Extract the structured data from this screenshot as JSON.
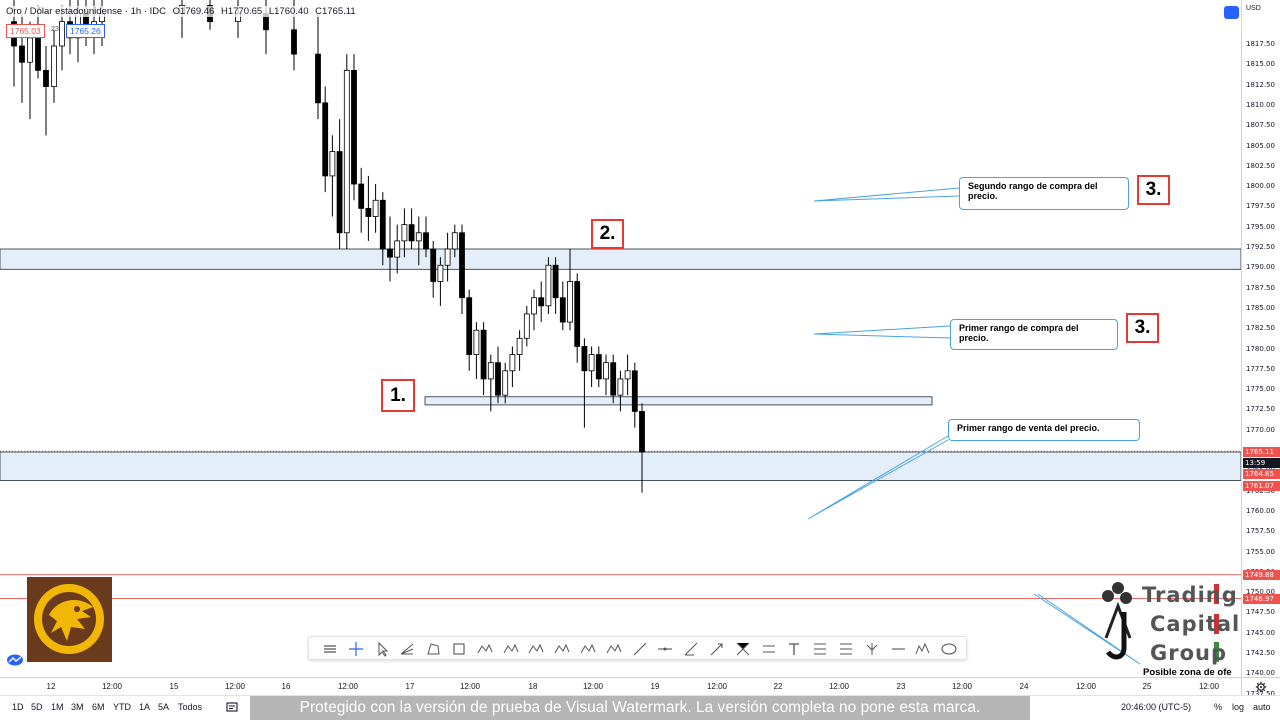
{
  "legend": {
    "symbol": "Oro / Dólar estadounidense · 1h · IDC",
    "open": "O1769.46",
    "high": "H1770.65",
    "low": "L1760.40",
    "close": "C1765.11"
  },
  "quote": {
    "bid": "1765.03",
    "spread": "23",
    "ask": "1765.26"
  },
  "price_axis": {
    "currency": "USD",
    "ticks": [
      "1817.50",
      "1815.00",
      "1812.50",
      "1810.00",
      "1807.50",
      "1805.00",
      "1802.50",
      "1800.00",
      "1797.50",
      "1795.00",
      "1792.50",
      "1790.00",
      "1787.50",
      "1785.00",
      "1782.50",
      "1780.00",
      "1777.50",
      "1775.00",
      "1772.50",
      "1770.00",
      "1767.50",
      "1765.00",
      "1762.50",
      "1760.00",
      "1757.50",
      "1755.00",
      "1752.50",
      "1750.00",
      "1747.50",
      "1745.00",
      "1742.50",
      "1740.00",
      "1737.50"
    ],
    "tags": {
      "last": {
        "text": "1765.11",
        "color": "#ef5350"
      },
      "countdown": {
        "text": "13:59",
        "color": "#131722"
      },
      "level_a": {
        "text": "1764.65",
        "color": "#ef5350"
      },
      "level_b": {
        "text": "1761.07",
        "color": "#ef5350"
      },
      "level_c": {
        "text": "1749.88",
        "color": "#ef5350"
      },
      "level_d": {
        "text": "1746.97",
        "color": "#ef5350"
      }
    }
  },
  "time_axis": {
    "ticks": [
      "12",
      "12:00",
      "15",
      "12:00",
      "16",
      "12:00",
      "17",
      "12:00",
      "18",
      "12:00",
      "19",
      "12:00",
      "22",
      "12:00",
      "23",
      "12:00",
      "24",
      "12:00",
      "25",
      "12:00"
    ]
  },
  "bottom_bar": {
    "ranges": [
      "1D",
      "5D",
      "1M",
      "3M",
      "6M",
      "YTD",
      "1A",
      "5A",
      "Todos"
    ],
    "watermark": "Protegido con la versión de prueba de Visual Watermark. La versión completa no pone esta marca.",
    "clock": "20:46:00 (UTC-5)",
    "pct": "%",
    "log": "log",
    "auto": "auto"
  },
  "annotations": {
    "callout_segundo": "Segundo rango de compra del precio.",
    "callout_primer_compra": "Primer rango de compra del precio.",
    "callout_primer_venta": "Primer rango de venta del precio.",
    "num_1": "1.",
    "num_2": "2.",
    "num_3a": "3.",
    "num_3b": "3.",
    "zone_label": "Posible zona de ofe"
  },
  "logo": {
    "line1": "Trading",
    "line2": "Capital",
    "line3": "Group"
  },
  "colors": {
    "bull": "#ffffff",
    "bear": "#000000",
    "zone_fill": "#e3eef9",
    "zone_border": "#1e2a3a",
    "callout_line": "#4aa3df",
    "red_level": "#e53935"
  },
  "chart_data": {
    "type": "candlestick",
    "symbol": "Oro / Dólar estadounidense",
    "timeframe": "1h",
    "ylim": [
      1737.5,
      1821
    ],
    "candles": [
      [
        1818,
        1821,
        1810,
        1815
      ],
      [
        1815,
        1819,
        1808,
        1813
      ],
      [
        1813,
        1818,
        1806,
        1816
      ],
      [
        1816,
        1820,
        1811,
        1812
      ],
      [
        1812,
        1815,
        1804,
        1810
      ],
      [
        1810,
        1817,
        1808,
        1815
      ],
      [
        1815,
        1820,
        1812,
        1818
      ],
      [
        1818,
        1821,
        1814,
        1816
      ],
      [
        1816,
        1821,
        1813,
        1819
      ],
      [
        1819,
        1821,
        1815,
        1817
      ],
      [
        1817,
        1821,
        1814,
        1818
      ],
      [
        1818,
        1821,
        1815,
        1819
      ],
      [
        1819,
        1821,
        1816,
        1820
      ],
      [
        1820,
        1821,
        1817,
        1818
      ],
      [
        1818,
        1821,
        1816,
        1819
      ],
      [
        1819,
        1821,
        1814,
        1817
      ],
      [
        1817,
        1821,
        1812,
        1814
      ],
      [
        1814,
        1819,
        1806,
        1808
      ],
      [
        1808,
        1810,
        1797,
        1799
      ],
      [
        1799,
        1804,
        1794,
        1802
      ],
      [
        1802,
        1806,
        1790,
        1792
      ],
      [
        1792,
        1814,
        1790,
        1812
      ],
      [
        1812,
        1814,
        1796,
        1798
      ],
      [
        1798,
        1800,
        1792,
        1795
      ],
      [
        1795,
        1799,
        1791,
        1794
      ],
      [
        1794,
        1798,
        1792,
        1796
      ],
      [
        1796,
        1797,
        1788,
        1790
      ],
      [
        1790,
        1794,
        1786,
        1789
      ],
      [
        1789,
        1793,
        1787,
        1791
      ],
      [
        1791,
        1795,
        1789,
        1793
      ],
      [
        1793,
        1795,
        1790,
        1791
      ],
      [
        1791,
        1794,
        1788,
        1792
      ],
      [
        1792,
        1794,
        1789,
        1790
      ],
      [
        1790,
        1791,
        1784,
        1786
      ],
      [
        1786,
        1789,
        1783,
        1788
      ],
      [
        1788,
        1792,
        1786,
        1790
      ],
      [
        1790,
        1793,
        1789,
        1792
      ],
      [
        1792,
        1793,
        1782,
        1784
      ],
      [
        1784,
        1785,
        1775,
        1777
      ],
      [
        1777,
        1781,
        1774,
        1780
      ],
      [
        1780,
        1781,
        1772,
        1774
      ],
      [
        1774,
        1777,
        1770,
        1776
      ],
      [
        1776,
        1778,
        1771,
        1772
      ],
      [
        1772,
        1776,
        1771,
        1775
      ],
      [
        1775,
        1778,
        1773,
        1777
      ],
      [
        1777,
        1780,
        1775,
        1779
      ],
      [
        1779,
        1783,
        1778,
        1782
      ],
      [
        1782,
        1785,
        1780,
        1784
      ],
      [
        1784,
        1786,
        1781,
        1783
      ],
      [
        1783,
        1789,
        1782,
        1788
      ],
      [
        1788,
        1789,
        1782,
        1784
      ],
      [
        1784,
        1786,
        1780,
        1781
      ],
      [
        1781,
        1790,
        1780,
        1786
      ],
      [
        1786,
        1787,
        1776,
        1778
      ],
      [
        1778,
        1779,
        1768,
        1775
      ],
      [
        1775,
        1778,
        1773,
        1777
      ],
      [
        1777,
        1778,
        1773,
        1774
      ],
      [
        1774,
        1777,
        1772,
        1776
      ],
      [
        1776,
        1777,
        1771,
        1772
      ],
      [
        1772,
        1775,
        1770,
        1774
      ],
      [
        1774,
        1777,
        1772,
        1775
      ],
      [
        1775,
        1776,
        1768,
        1770
      ],
      [
        1770,
        1771,
        1760,
        1765
      ]
    ],
    "zones": [
      {
        "label": "2.",
        "top": 1790,
        "bottom": 1787.5
      },
      {
        "label": "1.",
        "top": 1771.8,
        "bottom": 1770.8
      },
      {
        "label": "venta",
        "top": 1765.0,
        "bottom": 1761.5
      }
    ],
    "levels": [
      1749.88,
      1746.97
    ]
  }
}
